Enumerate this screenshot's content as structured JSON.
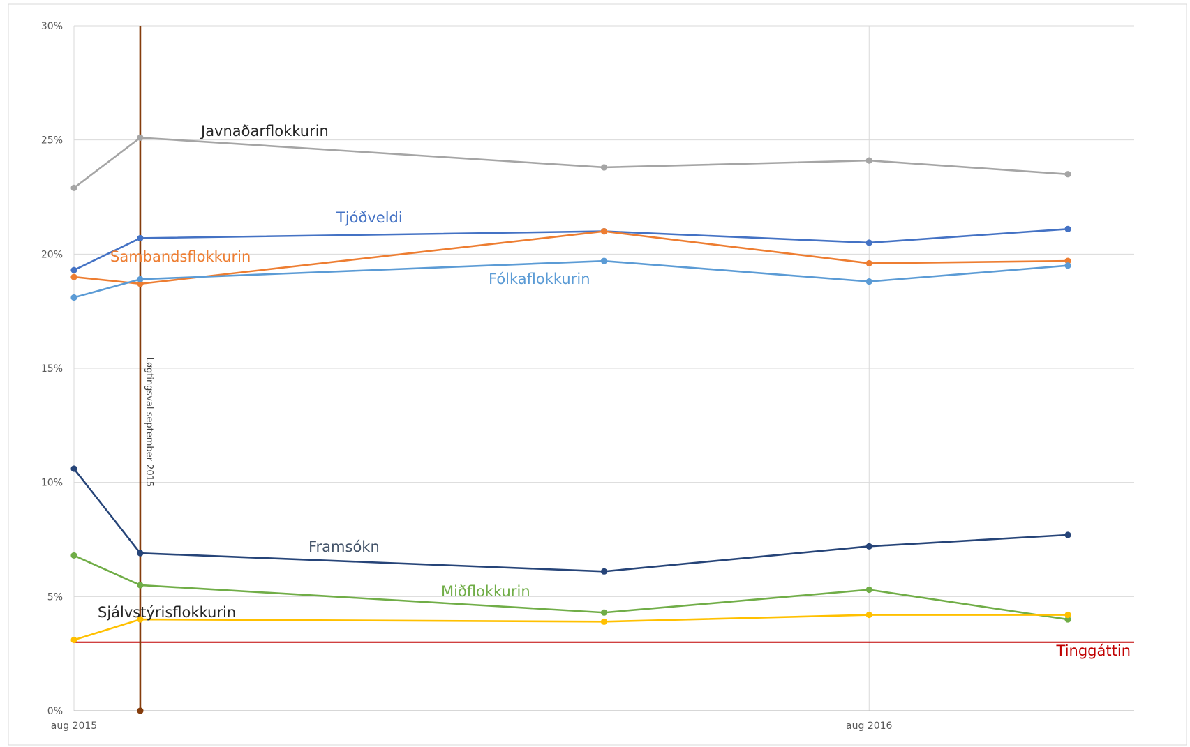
{
  "chart_data": {
    "type": "line",
    "title": "",
    "xlabel": "",
    "ylabel": "",
    "x_ticks": [
      {
        "date": "2015-08",
        "label": "aug 2015"
      },
      {
        "date": "2016-08",
        "label": "aug 2016"
      }
    ],
    "xlim": [
      "2015-08",
      "2016-12"
    ],
    "ylim": [
      0,
      30
    ],
    "y_ticks": [
      {
        "value": 0,
        "label": "0%"
      },
      {
        "value": 5,
        "label": "5%"
      },
      {
        "value": 10,
        "label": "10%"
      },
      {
        "value": 15,
        "label": "15%"
      },
      {
        "value": 20,
        "label": "20%"
      },
      {
        "value": 25,
        "label": "25%"
      },
      {
        "value": 30,
        "label": "30%"
      }
    ],
    "grid": true,
    "x": [
      "2015-08",
      "2015-09",
      "2016-04",
      "2016-08",
      "2016-11"
    ],
    "series": [
      {
        "name": "Javnaðarflokkurin",
        "color": "#a5a5a5",
        "values": [
          22.9,
          25.1,
          23.8,
          24.1,
          23.5
        ]
      },
      {
        "name": "Tjóðveldi",
        "color": "#4472c4",
        "values": [
          19.3,
          20.7,
          21.0,
          20.5,
          21.1
        ]
      },
      {
        "name": "Sambandsflokkurin",
        "color": "#ed7d31",
        "values": [
          19.0,
          18.7,
          21.0,
          19.6,
          19.7
        ]
      },
      {
        "name": "Fólkaflokkurin",
        "color": "#5b9bd5",
        "values": [
          18.1,
          18.9,
          19.7,
          18.8,
          19.5
        ]
      },
      {
        "name": "Framsókn",
        "color": "#264478",
        "values": [
          10.6,
          6.9,
          6.1,
          7.2,
          7.7
        ]
      },
      {
        "name": "Miðflokkurin",
        "color": "#70ad47",
        "values": [
          6.8,
          5.5,
          4.3,
          5.3,
          4.0
        ]
      },
      {
        "name": "Sjálvstýrisflokkurin",
        "color": "#ffc000",
        "values": [
          3.1,
          4.0,
          3.9,
          4.2,
          4.2
        ]
      }
    ],
    "annotations": {
      "election": {
        "label": "Løgtingsval september 2015",
        "x": "2015-09",
        "color": "#843c0c"
      },
      "threshold": {
        "label": "Tinggáttin",
        "value": 3.0,
        "color": "#c00000"
      }
    }
  }
}
